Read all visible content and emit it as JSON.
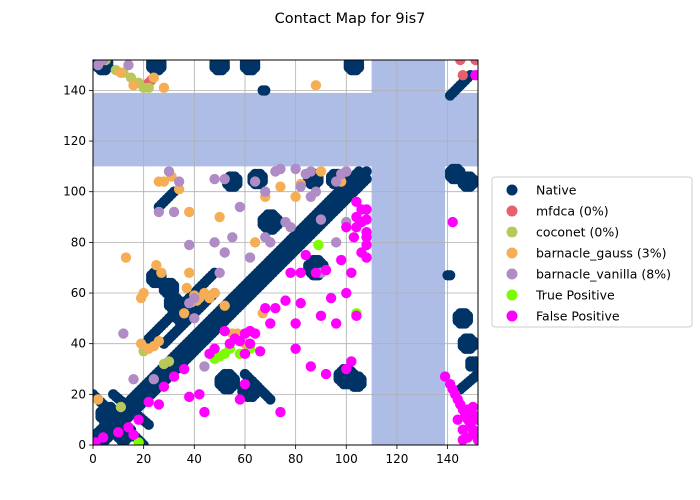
{
  "chart_data": {
    "type": "scatter",
    "title": "Contact Map for 9is7",
    "xlabel": "",
    "ylabel": "",
    "xlim": [
      0,
      152
    ],
    "ylim": [
      0,
      152
    ],
    "xticks": [
      0,
      20,
      40,
      60,
      80,
      100,
      120,
      140
    ],
    "yticks": [
      0,
      20,
      40,
      60,
      80,
      100,
      120,
      140
    ],
    "grid": true,
    "legend_position": "right",
    "shaded_regions": {
      "color": "#aebde6",
      "bands": [
        {
          "axis": "y",
          "from": 110,
          "to": 139
        },
        {
          "axis": "x",
          "from": 110,
          "to": 139
        }
      ]
    },
    "native_segments": [
      {
        "x0": 0,
        "y0": 0,
        "x1": 108,
        "y1": 108
      },
      {
        "x0": 0,
        "y0": 3,
        "x1": 105,
        "y1": 108
      },
      {
        "x0": 3,
        "y0": 0,
        "x1": 108,
        "y1": 105
      },
      {
        "x0": 22,
        "y0": 42,
        "x1": 48,
        "y1": 68
      },
      {
        "x0": 28,
        "y0": 40,
        "x1": 48,
        "y1": 60
      },
      {
        "x0": 60,
        "y0": 28,
        "x1": 70,
        "y1": 18
      },
      {
        "x0": 0,
        "y0": 20,
        "x1": 20,
        "y1": 0
      },
      {
        "x0": 8,
        "y0": 20,
        "x1": 22,
        "y1": 8
      },
      {
        "x0": 26,
        "y0": 94,
        "x1": 32,
        "y1": 100
      },
      {
        "x0": 141,
        "y0": 138,
        "x1": 149,
        "y1": 146
      },
      {
        "x0": 145,
        "y0": 22,
        "x1": 152,
        "y1": 28
      }
    ],
    "native_clusters": [
      {
        "cx": 25,
        "cy": 66,
        "spread": 2
      },
      {
        "cx": 30,
        "cy": 62,
        "spread": 2
      },
      {
        "cx": 32,
        "cy": 56,
        "spread": 2
      },
      {
        "cx": 35,
        "cy": 52,
        "spread": 3
      },
      {
        "cx": 6,
        "cy": 12,
        "spread": 3
      },
      {
        "cx": 12,
        "cy": 5,
        "spread": 3
      },
      {
        "cx": 53,
        "cy": 25,
        "spread": 3
      },
      {
        "cx": 62,
        "cy": 22,
        "spread": 3
      },
      {
        "cx": 70,
        "cy": 88,
        "spread": 3
      },
      {
        "cx": 88,
        "cy": 70,
        "spread": 3
      },
      {
        "cx": 100,
        "cy": 27,
        "spread": 3
      },
      {
        "cx": 104,
        "cy": 25,
        "spread": 2
      },
      {
        "cx": 4,
        "cy": 150,
        "spread": 2
      },
      {
        "cx": 25,
        "cy": 150,
        "spread": 2
      },
      {
        "cx": 50,
        "cy": 150,
        "spread": 2
      },
      {
        "cx": 62,
        "cy": 150,
        "spread": 2
      },
      {
        "cx": 103,
        "cy": 150,
        "spread": 2
      },
      {
        "cx": 146,
        "cy": 50,
        "spread": 2
      },
      {
        "cx": 148,
        "cy": 40,
        "spread": 2
      },
      {
        "cx": 150,
        "cy": 32,
        "spread": 1
      },
      {
        "cx": 148,
        "cy": 104,
        "spread": 2
      },
      {
        "cx": 143,
        "cy": 107,
        "spread": 2
      },
      {
        "cx": 55,
        "cy": 104,
        "spread": 2
      },
      {
        "cx": 65,
        "cy": 105,
        "spread": 2
      },
      {
        "cx": 87,
        "cy": 105,
        "spread": 2
      },
      {
        "cx": 96,
        "cy": 105,
        "spread": 2
      }
    ],
    "native_points": [
      [
        67,
        140
      ],
      [
        68,
        140
      ],
      [
        140,
        67
      ],
      [
        141,
        67
      ]
    ],
    "series": [
      {
        "name": "Native",
        "label": "Native",
        "color": "#003466",
        "points": []
      },
      {
        "name": "mfdca",
        "label": "mfdca (0%)",
        "color": "#e8606e",
        "points": [
          [
            22,
            143
          ],
          [
            23,
            144
          ],
          [
            145,
            152
          ],
          [
            151,
            152
          ],
          [
            146,
            146
          ]
        ]
      },
      {
        "name": "coconet",
        "label": "coconet (0%)",
        "color": "#b8c95a",
        "points": [
          [
            9,
            148
          ],
          [
            12,
            147
          ],
          [
            15,
            145
          ],
          [
            18,
            143
          ],
          [
            20,
            141
          ],
          [
            22,
            141
          ],
          [
            28,
            32
          ],
          [
            30,
            33
          ],
          [
            11,
            15
          ],
          [
            20,
            37
          ],
          [
            5,
            152
          ]
        ]
      },
      {
        "name": "barnacle_gauss",
        "label": "barnacle_gauss (3%)",
        "color": "#f6ae55",
        "points": [
          [
            13,
            74
          ],
          [
            2,
            18
          ],
          [
            19,
            58
          ],
          [
            20,
            60
          ],
          [
            19,
            40
          ],
          [
            22,
            38
          ],
          [
            24,
            39
          ],
          [
            26,
            41
          ],
          [
            25,
            71
          ],
          [
            27,
            68
          ],
          [
            26,
            104
          ],
          [
            28,
            104
          ],
          [
            31,
            106
          ],
          [
            34,
            101
          ],
          [
            36,
            52
          ],
          [
            37,
            62
          ],
          [
            38,
            92
          ],
          [
            38,
            68
          ],
          [
            40,
            59
          ],
          [
            41,
            57
          ],
          [
            42,
            58
          ],
          [
            44,
            60
          ],
          [
            46,
            58
          ],
          [
            48,
            60
          ],
          [
            50,
            90
          ],
          [
            52,
            55
          ],
          [
            55,
            44
          ],
          [
            57,
            44
          ],
          [
            60,
            40
          ],
          [
            64,
            80
          ],
          [
            67,
            52
          ],
          [
            68,
            98
          ],
          [
            74,
            102
          ],
          [
            80,
            98
          ],
          [
            82,
            103
          ],
          [
            88,
            142
          ],
          [
            90,
            108
          ],
          [
            98,
            104
          ],
          [
            100,
            108
          ],
          [
            28,
            141
          ],
          [
            16,
            142
          ],
          [
            24,
            145
          ],
          [
            11,
            147
          ]
        ]
      },
      {
        "name": "barnacle_vanilla",
        "label": "barnacle_vanilla (8%)",
        "color": "#b08cc7",
        "points": [
          [
            12,
            44
          ],
          [
            16,
            26
          ],
          [
            24,
            26
          ],
          [
            26,
            92
          ],
          [
            30,
            108
          ],
          [
            32,
            92
          ],
          [
            34,
            104
          ],
          [
            38,
            79
          ],
          [
            38,
            56
          ],
          [
            40,
            58
          ],
          [
            40,
            50
          ],
          [
            44,
            31
          ],
          [
            48,
            80
          ],
          [
            48,
            105
          ],
          [
            50,
            68
          ],
          [
            52,
            105
          ],
          [
            52,
            76
          ],
          [
            55,
            82
          ],
          [
            58,
            94
          ],
          [
            62,
            74
          ],
          [
            64,
            104
          ],
          [
            68,
            100
          ],
          [
            68,
            82
          ],
          [
            70,
            80
          ],
          [
            72,
            108
          ],
          [
            74,
            109
          ],
          [
            76,
            88
          ],
          [
            78,
            86
          ],
          [
            80,
            109
          ],
          [
            82,
            102
          ],
          [
            84,
            107
          ],
          [
            86,
            108
          ],
          [
            88,
            100
          ],
          [
            90,
            68
          ],
          [
            92,
            69
          ],
          [
            96,
            104
          ],
          [
            98,
            107
          ],
          [
            100,
            108
          ],
          [
            4,
            152
          ],
          [
            14,
            150
          ],
          [
            2,
            150
          ],
          [
            100,
            88
          ],
          [
            96,
            80
          ],
          [
            90,
            89
          ],
          [
            86,
            98
          ]
        ]
      },
      {
        "name": "true_positive",
        "label": "True Positive",
        "color": "#7cfc00",
        "points": [
          [
            18,
            1
          ],
          [
            48,
            34
          ],
          [
            50,
            35
          ],
          [
            52,
            36
          ],
          [
            54,
            38
          ],
          [
            58,
            36
          ],
          [
            62,
            38
          ],
          [
            89,
            79
          ],
          [
            104,
            52
          ]
        ]
      },
      {
        "name": "false_positive",
        "label": "False Positive",
        "color": "#ff00ff",
        "points": [
          [
            1,
            1
          ],
          [
            4,
            3
          ],
          [
            10,
            5
          ],
          [
            14,
            7
          ],
          [
            16,
            4
          ],
          [
            18,
            10
          ],
          [
            22,
            17
          ],
          [
            26,
            16
          ],
          [
            28,
            23
          ],
          [
            32,
            27
          ],
          [
            36,
            30
          ],
          [
            38,
            19
          ],
          [
            42,
            20
          ],
          [
            44,
            13
          ],
          [
            46,
            36
          ],
          [
            48,
            38
          ],
          [
            52,
            45
          ],
          [
            54,
            40
          ],
          [
            56,
            42
          ],
          [
            58,
            41
          ],
          [
            60,
            44
          ],
          [
            62,
            40
          ],
          [
            58,
            18
          ],
          [
            60,
            24
          ],
          [
            60,
            36
          ],
          [
            62,
            45
          ],
          [
            64,
            44
          ],
          [
            66,
            37
          ],
          [
            68,
            54
          ],
          [
            70,
            48
          ],
          [
            72,
            54
          ],
          [
            74,
            13
          ],
          [
            76,
            57
          ],
          [
            78,
            68
          ],
          [
            80,
            38
          ],
          [
            80,
            48
          ],
          [
            82,
            68
          ],
          [
            82,
            56
          ],
          [
            84,
            75
          ],
          [
            86,
            31
          ],
          [
            88,
            68
          ],
          [
            90,
            51
          ],
          [
            92,
            69
          ],
          [
            92,
            28
          ],
          [
            94,
            58
          ],
          [
            96,
            48
          ],
          [
            100,
            30
          ],
          [
            98,
            73
          ],
          [
            100,
            86
          ],
          [
            100,
            60
          ],
          [
            102,
            33
          ],
          [
            102,
            68
          ],
          [
            104,
            51
          ],
          [
            104,
            86
          ],
          [
            106,
            76
          ],
          [
            106,
            88
          ],
          [
            108,
            74
          ],
          [
            108,
            82
          ],
          [
            108,
            89
          ],
          [
            108,
            84
          ],
          [
            108,
            79
          ],
          [
            104,
            96
          ],
          [
            104,
            90
          ],
          [
            106,
            93
          ],
          [
            108,
            93
          ],
          [
            103,
            82
          ],
          [
            142,
            88
          ],
          [
            139,
            27
          ],
          [
            141,
            24
          ],
          [
            142,
            22
          ],
          [
            143,
            20
          ],
          [
            144,
            18
          ],
          [
            145,
            16
          ],
          [
            146,
            14
          ],
          [
            147,
            12
          ],
          [
            148,
            10
          ],
          [
            149,
            8
          ],
          [
            150,
            6
          ],
          [
            151,
            4
          ],
          [
            152,
            2
          ],
          [
            148,
            14
          ],
          [
            150,
            12
          ],
          [
            146,
            6
          ],
          [
            148,
            3
          ],
          [
            150,
            15
          ],
          [
            152,
            10
          ],
          [
            144,
            10
          ],
          [
            146,
            2
          ],
          [
            151,
            146
          ]
        ]
      }
    ]
  }
}
